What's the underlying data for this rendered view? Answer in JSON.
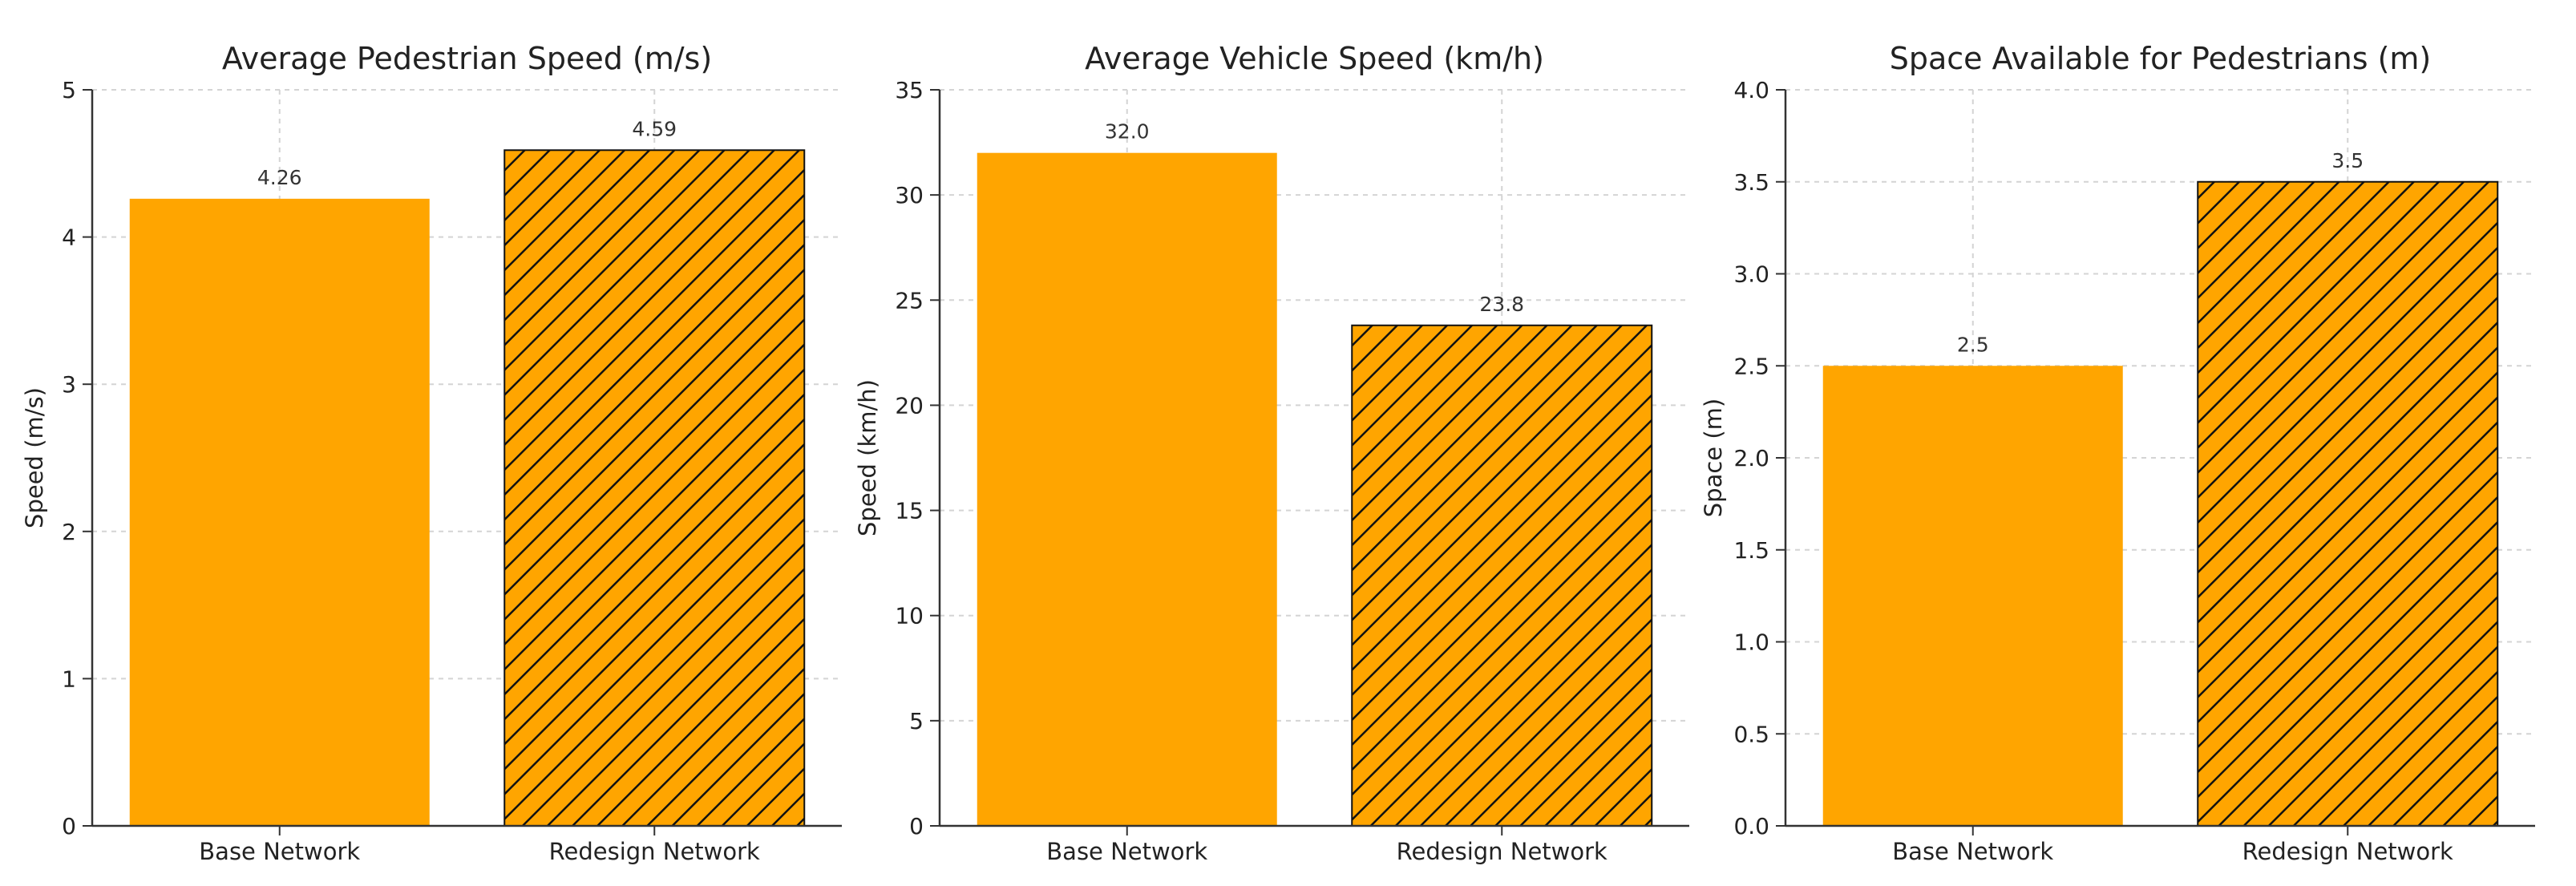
{
  "chart_data": [
    {
      "type": "bar",
      "title": "Average Pedestrian Speed (m/s)",
      "xlabel": "",
      "ylabel": "Speed (m/s)",
      "categories": [
        "Base Network",
        "Redesign Network"
      ],
      "values": [
        4.26,
        4.59
      ],
      "value_labels": [
        "4.26",
        "4.59"
      ],
      "ylim": [
        0,
        5
      ],
      "yticks": [
        "0",
        "1",
        "2",
        "3",
        "4",
        "5"
      ],
      "grid": true,
      "bar_color": "#FFA500",
      "hatched": [
        false,
        true
      ]
    },
    {
      "type": "bar",
      "title": "Average Vehicle Speed (km/h)",
      "xlabel": "",
      "ylabel": "Speed (km/h)",
      "categories": [
        "Base Network",
        "Redesign Network"
      ],
      "values": [
        32.0,
        23.8
      ],
      "value_labels": [
        "32.0",
        "23.8"
      ],
      "ylim": [
        0,
        35
      ],
      "yticks": [
        "0",
        "5",
        "10",
        "15",
        "20",
        "25",
        "30",
        "35"
      ],
      "grid": true,
      "bar_color": "#FFA500",
      "hatched": [
        false,
        true
      ]
    },
    {
      "type": "bar",
      "title": "Space Available for Pedestrians (m)",
      "xlabel": "",
      "ylabel": "Space (m)",
      "categories": [
        "Base Network",
        "Redesign Network"
      ],
      "values": [
        2.5,
        3.5
      ],
      "value_labels": [
        "2.5",
        "3.5"
      ],
      "ylim": [
        0,
        4
      ],
      "yticks": [
        "0.0",
        "0.5",
        "1.0",
        "1.5",
        "2.0",
        "2.5",
        "3.0",
        "3.5",
        "4.0"
      ],
      "grid": true,
      "bar_color": "#FFA500",
      "hatched": [
        false,
        true
      ]
    }
  ]
}
